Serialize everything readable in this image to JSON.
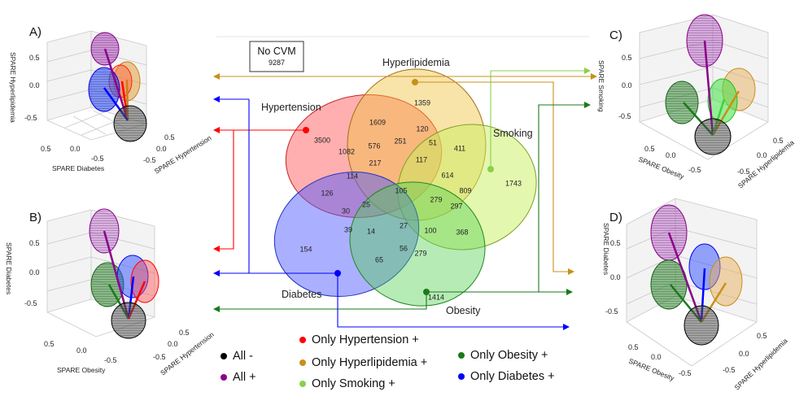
{
  "colors": {
    "hypertension": "#ff0000",
    "hyperlipidemia": "#c8901a",
    "smoking": "#8ad04a",
    "obesity": "#1a7a1a",
    "diabetes": "#0000ff",
    "all_minus": "#000000",
    "all_plus": "#8b008b"
  },
  "no_cvm": {
    "label": "No CVM",
    "count": "9287"
  },
  "venn": {
    "sets": {
      "hypertension": "Hypertension",
      "hyperlipidemia": "Hyperlipidemia",
      "smoking": "Smoking",
      "obesity": "Obesity",
      "diabetes": "Diabetes"
    },
    "regions": [
      {
        "id": "hyp_only",
        "value": "3500"
      },
      {
        "id": "hl_only",
        "value": "1359"
      },
      {
        "id": "sm_only",
        "value": "1743"
      },
      {
        "id": "ob_only",
        "value": "1414"
      },
      {
        "id": "db_only",
        "value": "154"
      },
      {
        "id": "r1609",
        "value": "1609"
      },
      {
        "id": "r120",
        "value": "120"
      },
      {
        "id": "r411",
        "value": "411"
      },
      {
        "id": "r1082",
        "value": "1082"
      },
      {
        "id": "r576",
        "value": "576"
      },
      {
        "id": "r251",
        "value": "251"
      },
      {
        "id": "r51",
        "value": "51"
      },
      {
        "id": "r217",
        "value": "217"
      },
      {
        "id": "r117",
        "value": "117"
      },
      {
        "id": "r614",
        "value": "614"
      },
      {
        "id": "r114",
        "value": "114"
      },
      {
        "id": "r105",
        "value": "105"
      },
      {
        "id": "r809",
        "value": "809"
      },
      {
        "id": "r126",
        "value": "126"
      },
      {
        "id": "r279a",
        "value": "279"
      },
      {
        "id": "r297",
        "value": "297"
      },
      {
        "id": "r25",
        "value": "25"
      },
      {
        "id": "r30",
        "value": "30"
      },
      {
        "id": "r39",
        "value": "39"
      },
      {
        "id": "r14",
        "value": "14"
      },
      {
        "id": "r27",
        "value": "27"
      },
      {
        "id": "r100",
        "value": "100"
      },
      {
        "id": "r368",
        "value": "368"
      },
      {
        "id": "r56",
        "value": "56"
      },
      {
        "id": "r279b",
        "value": "279"
      },
      {
        "id": "r65",
        "value": "65"
      }
    ]
  },
  "panels": [
    {
      "letter": "A)",
      "zlabel": "SPARE Hyperlipidemia",
      "xlabel": "SPARE Diabetes",
      "ylabel": "SPARE Hypertension",
      "zticks": [
        "0.5",
        "0.0",
        "-0.5"
      ],
      "xticks": [
        "0.5",
        "0.0",
        "-0.5"
      ],
      "yticks": [
        "-0.5",
        "0.0",
        "0.5"
      ]
    },
    {
      "letter": "B)",
      "zlabel": "SPARE Diabetes",
      "xlabel": "SPARE Obesity",
      "ylabel": "SPARE Hypertension",
      "zticks": [
        "0.5",
        "0.0",
        "-0.5"
      ],
      "xticks": [
        "0.5",
        "0.0",
        "-0.5"
      ],
      "yticks": [
        "-0.5",
        "0.0",
        "0.5"
      ]
    },
    {
      "letter": "C)",
      "zlabel": "SPARE Smoking",
      "xlabel": "SPARE Obesity",
      "ylabel": "SPARE Hyperlipidemia",
      "zticks": [
        "0.5",
        "0.0",
        "-0.5"
      ],
      "xticks": [
        "0.5",
        "0.0",
        "-0.5"
      ],
      "yticks": [
        "-0.5",
        "0.0",
        "0.5"
      ]
    },
    {
      "letter": "D)",
      "zlabel": "SPARE Diabetes",
      "xlabel": "SPARE Obesity",
      "ylabel": "SPARE Hyperlipidemia",
      "zticks": [
        "0.5",
        "0.0",
        "-0.5"
      ],
      "xticks": [
        "0.5",
        "0.0",
        "-0.5"
      ],
      "yticks": [
        "-0.5",
        "0.0",
        "0.5"
      ]
    }
  ],
  "legend": {
    "all_minus": "All -",
    "all_plus": "All +",
    "only_hypertension": "Only Hypertension +",
    "only_hyperlipidemia": "Only Hyperlipidemia +",
    "only_smoking": "Only Smoking +",
    "only_obesity": "Only Obesity +",
    "only_diabetes": "Only Diabetes +"
  }
}
